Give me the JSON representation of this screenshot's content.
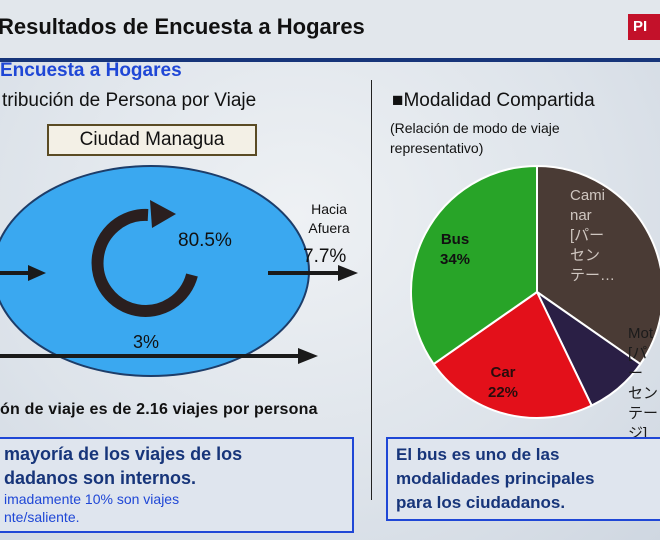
{
  "header": {
    "title": "Resultados de Encuesta a Hogares",
    "logo_text": "PI"
  },
  "left": {
    "section_title": "Encuesta a Hogares",
    "subtitle": "tribución de Persona por Viaje",
    "city_box": "Ciudad Managua",
    "internal_pct": "80.5%",
    "outbound_label": "Hacia Afuera",
    "outbound_pct": "7.7%",
    "through_pct": "3%",
    "rate_text": "ón de viaje es de 2.16 viajes por persona",
    "summary": {
      "line1": "mayoría de los viajes de los",
      "line2": "dadanos son internos.",
      "line3": "imadamente 10% son viajes",
      "line4": "nte/saliente."
    }
  },
  "right": {
    "title": "■Modalidad Compartida",
    "note": "(Relación de modo de viaje representativo)",
    "pie_labels": {
      "bus": "Bus\n34%",
      "car": "Car\n22%",
      "caminar": "Cami\nnar\n[パー\nセン\nテー…",
      "moto": "Mot\n[パー\nセン\nテー\nジ]"
    },
    "summary": {
      "line1": "El bus es uno de las",
      "line2": "modalidades principales",
      "line3": "para los ciudadanos."
    }
  },
  "chart_data": {
    "type": "pie",
    "title": "■Modalidad Compartida",
    "subtitle": "(Relación de modo de viaje representativo)",
    "series": [
      {
        "name": "Caminar",
        "value": 34,
        "color": "#4a3b35"
      },
      {
        "name": "Moto",
        "value": 8,
        "color": "#2a1f45"
      },
      {
        "name": "Car",
        "value": 22,
        "color": "#e3101a"
      },
      {
        "name": "Bus",
        "value": 34,
        "color": "#28a428"
      }
    ],
    "legend": "labels on slices"
  },
  "colors": {
    "ellipse": "#3aa8f0",
    "accent_blue": "#1f47d6",
    "logo_red": "#c3112a"
  }
}
